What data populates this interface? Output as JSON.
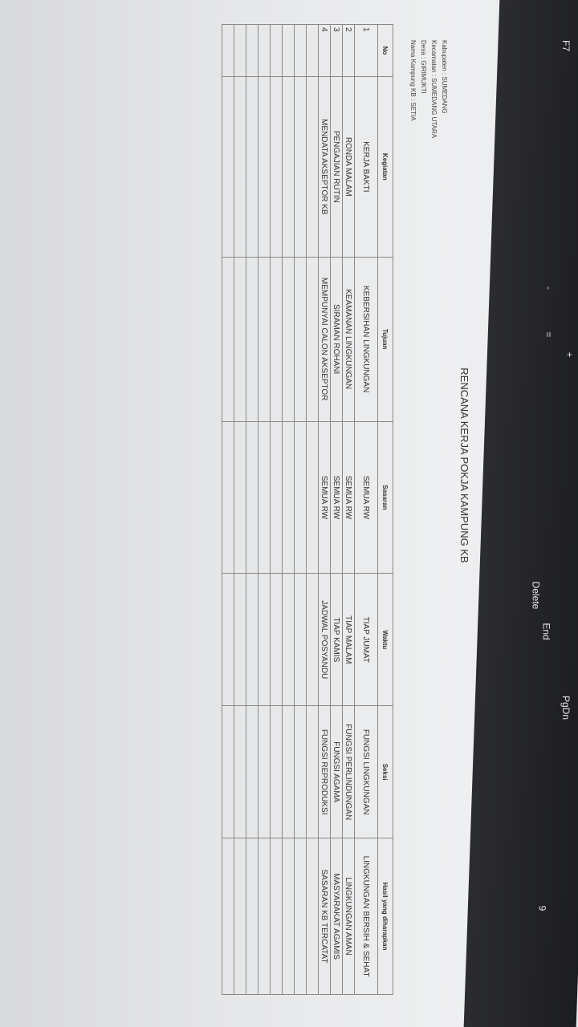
{
  "document": {
    "title": "RENCANA KERJA POKJA KAMPUNG KB",
    "info": [
      "Kabupaten : SUMEDANG",
      "Kecamatan : SUMEDANG UTARA",
      "Desa : GIRIMUKTI",
      "Nama Kampung KB : SETIA"
    ],
    "table": {
      "headers": [
        "No",
        "Kegiatan",
        "Tujuan",
        "Sasaran",
        "Waktu",
        "Seksi",
        "Hasil yang diharapkan"
      ],
      "rows": [
        [
          "1",
          "KERJA BAKTI",
          "KEBERSIHAN LINGKUNGAN",
          "SEMUA RW",
          "TIAP JUMAT",
          "FUNGSI LINGKUNGAN",
          "LINGKUNGAN BERSIH & SEHAT"
        ],
        [
          "2",
          "RONDA MALAM",
          "KEAMANAN LINGKUNGAN",
          "SEMUA RW",
          "TIAP MALAM",
          "FUNGSI PERLINDUNGAN",
          "LINGKUNGAN AMAN"
        ],
        [
          "3",
          "PENGAJIAN RUTIN",
          "SIRAMAN ROHANI",
          "SEMUA RW",
          "TIAP KAMIS",
          "FUNGSI AGAMA",
          "MASYARAKAT AGAMIS"
        ],
        [
          "4",
          "MENDATA AKSEPTOR KB",
          "MEMPUNYAI CALON AKSEPTOR",
          "SEMUA RW",
          "JADWAL POSYANDU",
          "FUNGSI REPRODUKSI",
          "SASARAN KB TERCATAT"
        ]
      ]
    }
  },
  "keyboard": {
    "keys": [
      "F7",
      "-",
      "=",
      "+",
      "Delete",
      "End",
      "PgDn",
      "9"
    ]
  }
}
